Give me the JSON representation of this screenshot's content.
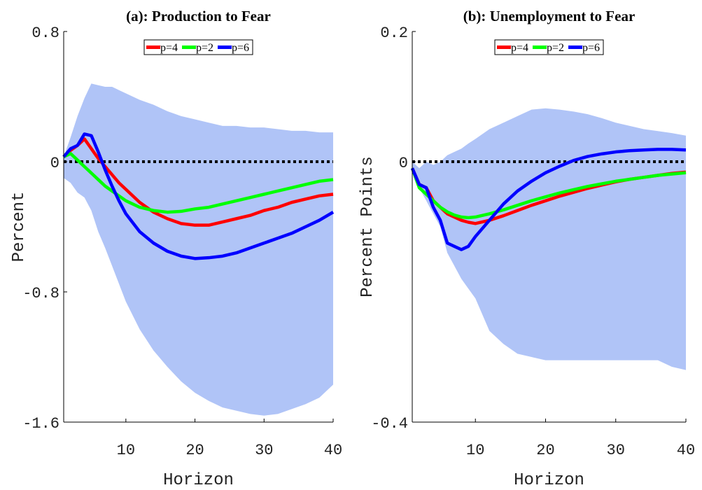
{
  "chart_data": [
    {
      "type": "line",
      "title": "(a): Production to Fear",
      "xlabel": "Horizon",
      "ylabel": "Percent",
      "x": [
        1,
        2,
        3,
        4,
        5,
        6,
        7,
        8,
        9,
        10,
        12,
        14,
        16,
        18,
        20,
        22,
        24,
        26,
        28,
        30,
        32,
        34,
        36,
        38,
        40
      ],
      "band": {
        "color": "#b0c4f7",
        "upper": [
          0.03,
          0.15,
          0.28,
          0.39,
          0.48,
          0.47,
          0.46,
          0.46,
          0.44,
          0.42,
          0.38,
          0.35,
          0.31,
          0.28,
          0.26,
          0.24,
          0.22,
          0.22,
          0.21,
          0.21,
          0.2,
          0.19,
          0.19,
          0.18,
          0.18
        ],
        "lower": [
          -0.1,
          -0.13,
          -0.19,
          -0.22,
          -0.3,
          -0.43,
          -0.53,
          -0.64,
          -0.75,
          -0.86,
          -1.03,
          -1.16,
          -1.26,
          -1.35,
          -1.42,
          -1.47,
          -1.51,
          -1.53,
          -1.55,
          -1.56,
          -1.55,
          -1.52,
          -1.49,
          -1.45,
          -1.37
        ]
      },
      "series": [
        {
          "name": "p=4",
          "color": "#ff0000",
          "values": [
            0.03,
            0.07,
            0.1,
            0.14,
            0.08,
            0.02,
            -0.03,
            -0.08,
            -0.13,
            -0.17,
            -0.25,
            -0.31,
            -0.35,
            -0.38,
            -0.39,
            -0.39,
            -0.37,
            -0.35,
            -0.33,
            -0.3,
            -0.28,
            -0.25,
            -0.23,
            -0.21,
            -0.2
          ]
        },
        {
          "name": "p=2",
          "color": "#00ff00",
          "values": [
            0.03,
            0.05,
            0.01,
            -0.03,
            -0.07,
            -0.11,
            -0.15,
            -0.18,
            -0.21,
            -0.24,
            -0.28,
            -0.3,
            -0.31,
            -0.305,
            -0.29,
            -0.28,
            -0.26,
            -0.24,
            -0.22,
            -0.2,
            -0.18,
            -0.16,
            -0.14,
            -0.12,
            -0.11
          ]
        },
        {
          "name": "p=6",
          "color": "#0000ff",
          "values": [
            0.03,
            0.08,
            0.1,
            0.17,
            0.16,
            0.06,
            -0.05,
            -0.15,
            -0.24,
            -0.32,
            -0.43,
            -0.5,
            -0.55,
            -0.58,
            -0.595,
            -0.59,
            -0.58,
            -0.56,
            -0.53,
            -0.5,
            -0.47,
            -0.44,
            -0.4,
            -0.36,
            -0.31
          ]
        }
      ],
      "xlim": [
        1,
        40
      ],
      "ylim": [
        -1.6,
        0.8
      ],
      "xticks": [
        10,
        20,
        30,
        40
      ],
      "yticks": [
        -1.6,
        -0.8,
        0,
        0.8
      ],
      "reference_line": 0,
      "legend": "upper center"
    },
    {
      "type": "line",
      "title": "(b): Unemployment to Fear",
      "xlabel": "Horizon",
      "ylabel": "Percent Points",
      "x": [
        1,
        2,
        3,
        4,
        5,
        6,
        7,
        8,
        9,
        10,
        12,
        14,
        16,
        18,
        20,
        22,
        24,
        26,
        28,
        30,
        32,
        34,
        36,
        38,
        40
      ],
      "band": {
        "color": "#b0c4f7",
        "upper": [
          0.0,
          -0.01,
          0.0,
          -0.005,
          0.0,
          0.01,
          0.015,
          0.02,
          0.028,
          0.035,
          0.05,
          0.06,
          0.07,
          0.08,
          0.082,
          0.08,
          0.077,
          0.073,
          0.067,
          0.06,
          0.055,
          0.05,
          0.047,
          0.044,
          0.04
        ],
        "lower": [
          -0.01,
          -0.04,
          -0.06,
          -0.08,
          -0.1,
          -0.14,
          -0.16,
          -0.18,
          -0.195,
          -0.21,
          -0.26,
          -0.28,
          -0.295,
          -0.3,
          -0.305,
          -0.305,
          -0.305,
          -0.305,
          -0.305,
          -0.305,
          -0.305,
          -0.305,
          -0.305,
          -0.315,
          -0.32
        ]
      },
      "series": [
        {
          "name": "p=4",
          "color": "#ff0000",
          "values": [
            -0.01,
            -0.035,
            -0.04,
            -0.06,
            -0.07,
            -0.08,
            -0.085,
            -0.09,
            -0.093,
            -0.095,
            -0.09,
            -0.083,
            -0.075,
            -0.067,
            -0.06,
            -0.053,
            -0.047,
            -0.041,
            -0.036,
            -0.031,
            -0.027,
            -0.024,
            -0.021,
            -0.018,
            -0.016
          ]
        },
        {
          "name": "p=2",
          "color": "#00ff00",
          "values": [
            -0.01,
            -0.04,
            -0.05,
            -0.06,
            -0.07,
            -0.077,
            -0.082,
            -0.085,
            -0.086,
            -0.085,
            -0.08,
            -0.074,
            -0.067,
            -0.06,
            -0.054,
            -0.048,
            -0.043,
            -0.038,
            -0.034,
            -0.03,
            -0.027,
            -0.024,
            -0.021,
            -0.019,
            -0.017
          ]
        },
        {
          "name": "p=6",
          "color": "#0000ff",
          "values": [
            -0.01,
            -0.035,
            -0.04,
            -0.07,
            -0.09,
            -0.125,
            -0.13,
            -0.135,
            -0.13,
            -0.115,
            -0.09,
            -0.065,
            -0.045,
            -0.03,
            -0.017,
            -0.007,
            0.002,
            0.008,
            0.012,
            0.015,
            0.017,
            0.018,
            0.019,
            0.019,
            0.018
          ]
        }
      ],
      "xlim": [
        1,
        40
      ],
      "ylim": [
        -0.4,
        0.2
      ],
      "xticks": [
        10,
        20,
        30,
        40
      ],
      "yticks": [
        -0.4,
        0,
        0.2
      ],
      "reference_line": 0,
      "legend": "upper center"
    }
  ]
}
